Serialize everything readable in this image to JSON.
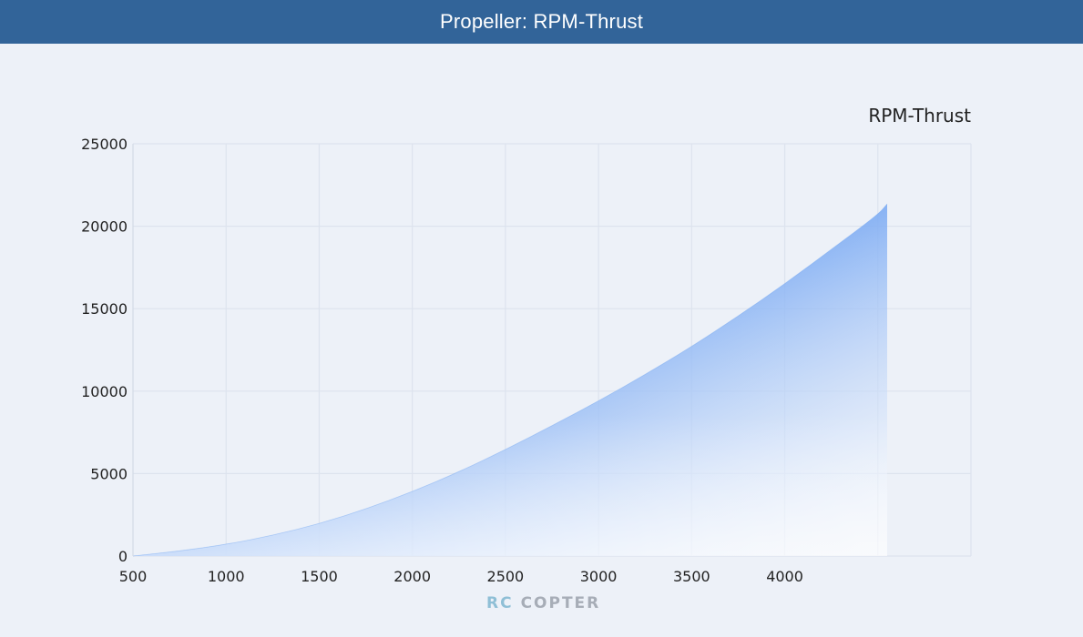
{
  "header": {
    "title": "Propeller: RPM-Thrust"
  },
  "colors": {
    "header_bg": "#326499",
    "page_bg": "#edf1f8",
    "area_top": "#5b95f0",
    "area_fade": "#f3f6fb",
    "grid": "#dde3ee"
  },
  "chart_data": {
    "type": "area",
    "title": "RPM-Thrust",
    "xlabel": "",
    "ylabel": "",
    "xlim": [
      500,
      5000
    ],
    "ylim": [
      0,
      25000
    ],
    "x_ticks": [
      500,
      1000,
      1500,
      2000,
      2500,
      3000,
      3500,
      4000
    ],
    "y_ticks": [
      0,
      5000,
      10000,
      15000,
      20000,
      25000
    ],
    "grid": true,
    "legend": "none",
    "series": [
      {
        "x": [
          500,
          750,
          1000,
          1250,
          1500,
          1750,
          2000,
          2250,
          2500,
          2750,
          3000,
          3250,
          3500,
          3750,
          4000,
          4250,
          4500,
          4550
        ],
        "y": [
          0,
          300,
          700,
          1250,
          1950,
          2850,
          3900,
          5100,
          6450,
          7900,
          9400,
          11000,
          12700,
          14550,
          16500,
          18600,
          20700,
          21350
        ]
      }
    ]
  },
  "logo": {
    "part1": "RC",
    "part2": "COPTER"
  }
}
